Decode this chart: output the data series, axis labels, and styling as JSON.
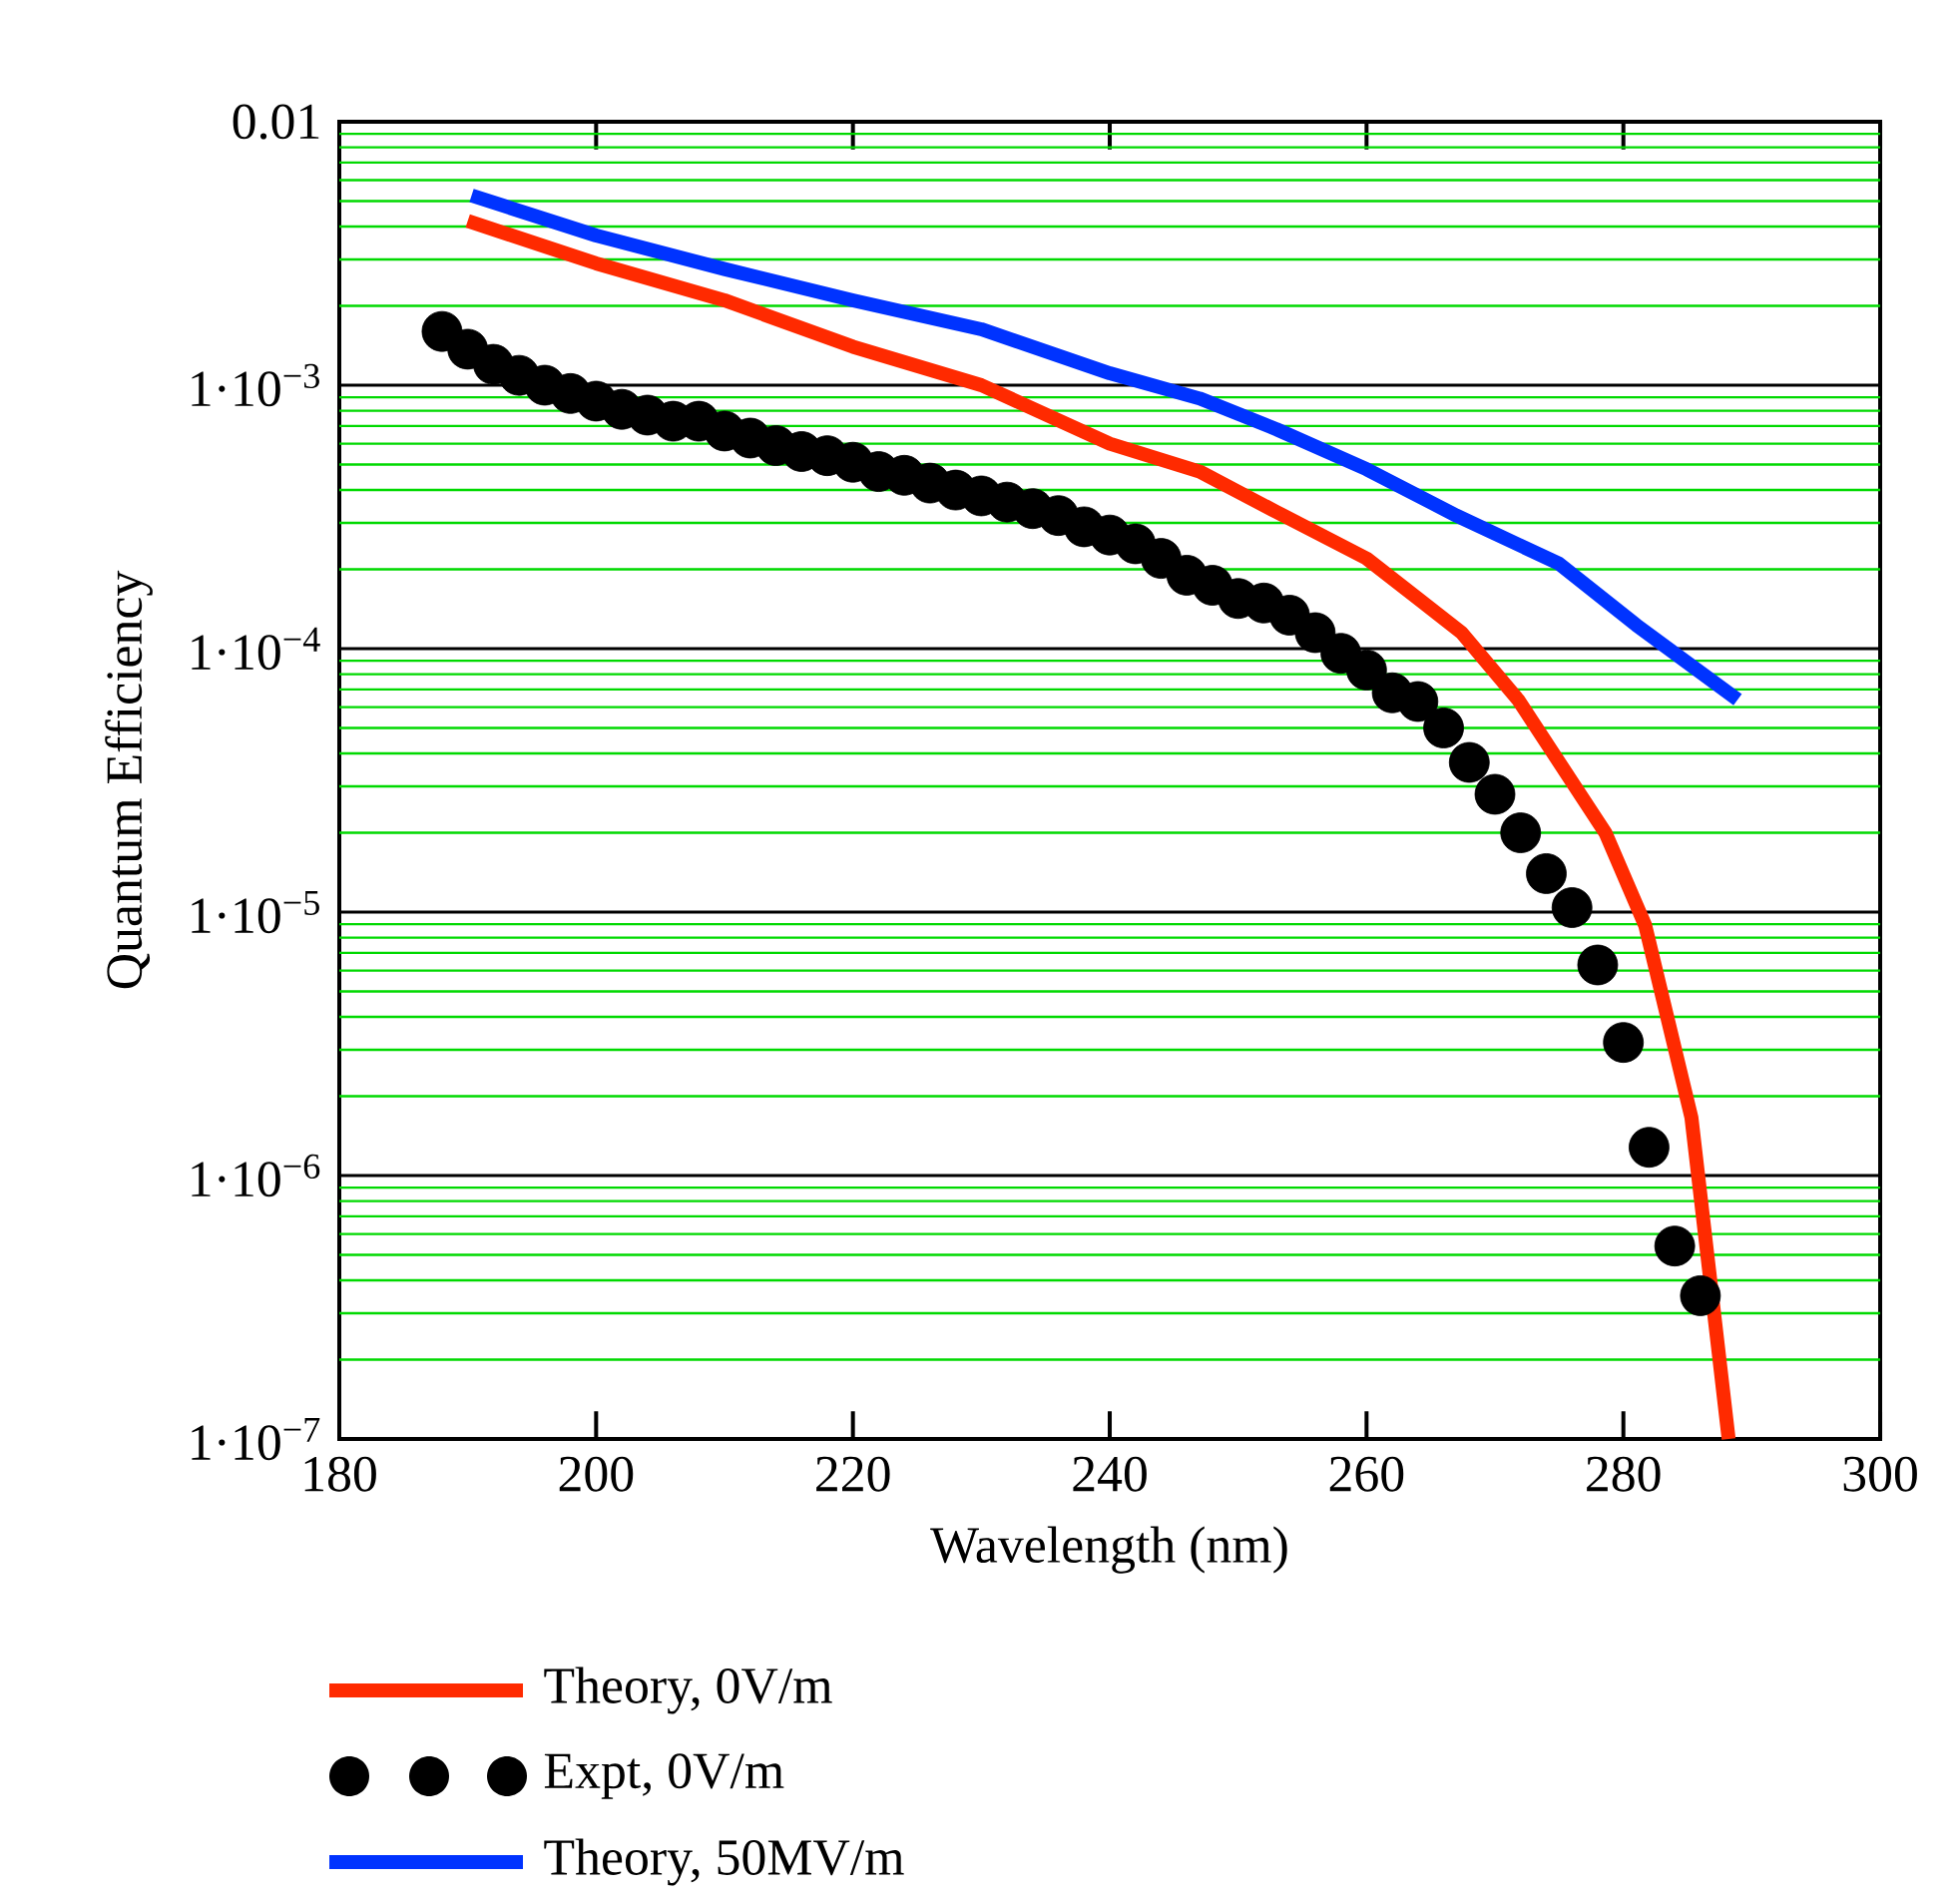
{
  "chart_data": {
    "type": "line",
    "xlabel": "Wavelength (nm)",
    "ylabel": "Quantum Efficiency",
    "xlim": [
      180,
      300
    ],
    "xticks": [
      180,
      200,
      220,
      240,
      260,
      280,
      300
    ],
    "ylim": [
      1e-07,
      0.01
    ],
    "log": "y",
    "yticks": [
      {
        "value": 1e-07,
        "label": "1·10$^{−7}$"
      },
      {
        "value": 2e-07,
        "label": null
      },
      {
        "value": 3e-07,
        "label": null
      },
      {
        "value": 4e-07,
        "label": null
      },
      {
        "value": 5e-07,
        "label": null
      },
      {
        "value": 6e-07,
        "label": null
      },
      {
        "value": 7e-07,
        "label": null
      },
      {
        "value": 8e-07,
        "label": null
      },
      {
        "value": 9e-07,
        "label": null
      },
      {
        "value": 1e-06,
        "label": "1·10$^{−6}$"
      },
      {
        "value": 2e-06,
        "label": null
      },
      {
        "value": 3e-06,
        "label": null
      },
      {
        "value": 4e-06,
        "label": null
      },
      {
        "value": 5e-06,
        "label": null
      },
      {
        "value": 6e-06,
        "label": null
      },
      {
        "value": 7e-06,
        "label": null
      },
      {
        "value": 8e-06,
        "label": null
      },
      {
        "value": 9e-06,
        "label": null
      },
      {
        "value": 1e-05,
        "label": "1·10$^{−5}$"
      },
      {
        "value": 2e-05,
        "label": null
      },
      {
        "value": 3e-05,
        "label": null
      },
      {
        "value": 4e-05,
        "label": null
      },
      {
        "value": 5e-05,
        "label": null
      },
      {
        "value": 6e-05,
        "label": null
      },
      {
        "value": 7e-05,
        "label": null
      },
      {
        "value": 8e-05,
        "label": null
      },
      {
        "value": 9e-05,
        "label": null
      },
      {
        "value": 0.0001,
        "label": "1·10$^{−4}$"
      },
      {
        "value": 0.0002,
        "label": null
      },
      {
        "value": 0.0003,
        "label": null
      },
      {
        "value": 0.0004,
        "label": null
      },
      {
        "value": 0.0005,
        "label": null
      },
      {
        "value": 0.0006,
        "label": null
      },
      {
        "value": 0.0007,
        "label": null
      },
      {
        "value": 0.0008,
        "label": null
      },
      {
        "value": 0.0009,
        "label": null
      },
      {
        "value": 0.001,
        "label": "1·10$^{−3}$"
      },
      {
        "value": 0.002,
        "label": null
      },
      {
        "value": 0.003,
        "label": null
      },
      {
        "value": 0.004,
        "label": null
      },
      {
        "value": 0.005,
        "label": null
      },
      {
        "value": 0.006,
        "label": null
      },
      {
        "value": 0.007,
        "label": null
      },
      {
        "value": 0.008,
        "label": null
      },
      {
        "value": 0.009,
        "label": null
      },
      0.01
    ],
    "grid": "y",
    "legend": "bottom left",
    "series": [
      {
        "name": "Theory, 0V/m",
        "color": "#ff2a00",
        "type": "line",
        "marker": "none",
        "x": [
          190,
          200,
          210,
          220,
          230,
          240,
          247,
          253,
          260,
          264,
          267.4,
          271.8,
          278.6,
          281.7,
          285.3,
          288.2
        ],
        "values": [
          0.0042,
          0.0029,
          0.0021,
          0.0014,
          0.001,
          0.0006,
          0.00047,
          0.00033,
          0.00022,
          0.000155,
          0.000115,
          6.4e-05,
          2e-05,
          8.9e-06,
          1.66e-06,
          1e-07
        ]
      },
      {
        "name": "Expt, 0V/m",
        "color": "#000000",
        "type": "scatter",
        "marker": "circle",
        "x": [
          188,
          190,
          192,
          194,
          196,
          198,
          200,
          202,
          204,
          206,
          208,
          210,
          212,
          214,
          216,
          218,
          220,
          222,
          224,
          226,
          228,
          230,
          232,
          234,
          236,
          238,
          240,
          242,
          244,
          246,
          248,
          250,
          252,
          254,
          256,
          258,
          260,
          262,
          264,
          266,
          268,
          270,
          272,
          274,
          276,
          278,
          280,
          282,
          284,
          286
        ],
        "values": [
          0.0016,
          0.00137,
          0.0012,
          0.00109,
          0.001,
          0.00093,
          0.00087,
          0.00081,
          0.00077,
          0.00073,
          0.00073,
          0.00067,
          0.00063,
          0.00059,
          0.00056,
          0.00054,
          0.00051,
          0.00047,
          0.000455,
          0.000425,
          0.0004,
          0.00038,
          0.00036,
          0.00034,
          0.00032,
          0.00029,
          0.00027,
          0.00025,
          0.00022,
          0.00019,
          0.000174,
          0.000155,
          0.000149,
          0.000134,
          0.000115,
          9.6e-05,
          8.3e-05,
          6.8e-05,
          6.3e-05,
          5e-05,
          3.7e-05,
          2.8e-05,
          2e-05,
          1.4e-05,
          1.04e-05,
          6.3e-06,
          3.2e-06,
          1.28e-06,
          5.4e-07,
          3.5e-07
        ]
      },
      {
        "name": "Theory, 50MV/m",
        "color": "#0033ff",
        "type": "line",
        "marker": "none",
        "x": [
          190.3,
          200,
          210,
          220,
          230,
          240,
          247,
          253,
          260,
          267,
          275,
          281,
          288.9
        ],
        "values": [
          0.00525,
          0.0037,
          0.00276,
          0.0021,
          0.00163,
          0.00111,
          0.00089,
          0.00068,
          0.00048,
          0.00032,
          0.00021,
          0.000123,
          6.4e-05
        ]
      }
    ]
  }
}
